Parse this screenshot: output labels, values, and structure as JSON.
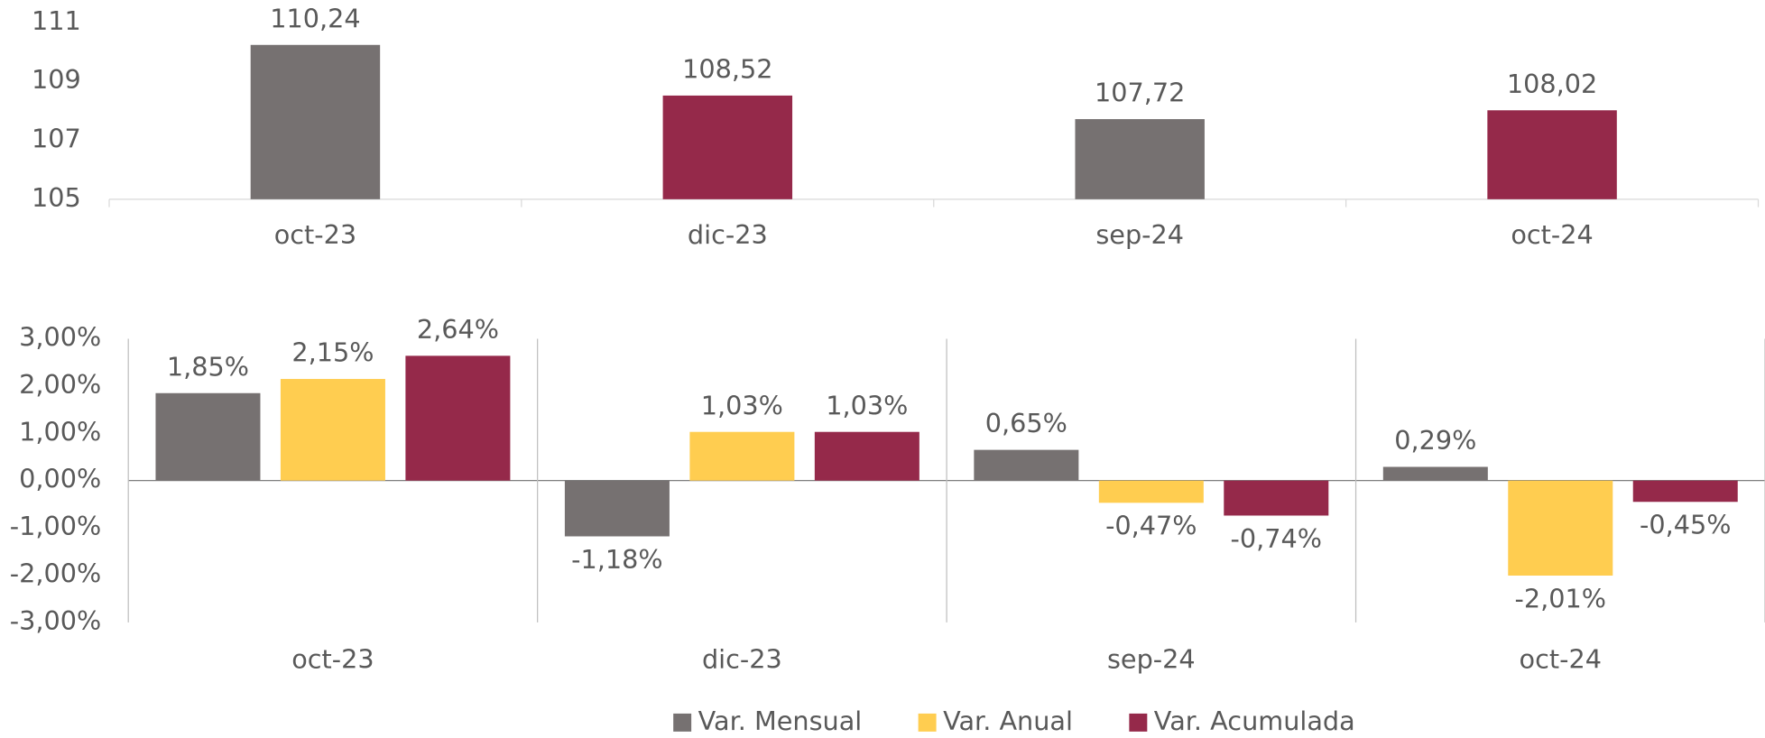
{
  "chart_data": [
    {
      "type": "bar",
      "categories": [
        "oct-23",
        "dic-23",
        "sep-24",
        "oct-24"
      ],
      "values": [
        110.24,
        108.52,
        107.72,
        108.02
      ],
      "value_labels": [
        "110,24",
        "108,52",
        "107,72",
        "108,02"
      ],
      "colors": [
        "#767171",
        "#95294a",
        "#767171",
        "#95294a"
      ],
      "ylim": [
        105,
        111
      ],
      "yticks": [
        105,
        107,
        109,
        111
      ],
      "grid": false
    },
    {
      "type": "grouped_bar",
      "categories": [
        "oct-23",
        "dic-23",
        "sep-24",
        "oct-24"
      ],
      "series": [
        {
          "name": "Var. Mensual",
          "color": "#767171",
          "values": [
            1.85,
            -1.18,
            0.65,
            0.29
          ],
          "value_labels": [
            "1,85%",
            "-1,18%",
            "0,65%",
            "0,29%"
          ]
        },
        {
          "name": "Var. Anual",
          "color": "#ffcd50",
          "values": [
            2.15,
            1.03,
            -0.47,
            -2.01
          ],
          "value_labels": [
            "2,15%",
            "1,03%",
            "-0,47%",
            "-2,01%"
          ]
        },
        {
          "name": "Var. Acumulada",
          "color": "#95294a",
          "values": [
            2.64,
            1.03,
            -0.74,
            -0.45
          ],
          "value_labels": [
            "2,64%",
            "1,03%",
            "-0,74%",
            "-0,45%"
          ]
        }
      ],
      "ylim": [
        -3,
        3
      ],
      "yticks": [
        {
          "value": -3,
          "label": "-3,00%"
        },
        {
          "value": -2,
          "label": "-2,00%"
        },
        {
          "value": -1,
          "label": "-1,00%"
        },
        {
          "value": 0,
          "label": "0,00%"
        },
        {
          "value": 1,
          "label": "1,00%"
        },
        {
          "value": 2,
          "label": "2,00%"
        },
        {
          "value": 3,
          "label": "3,00%"
        }
      ],
      "grid": false,
      "legend": "bottom"
    }
  ]
}
